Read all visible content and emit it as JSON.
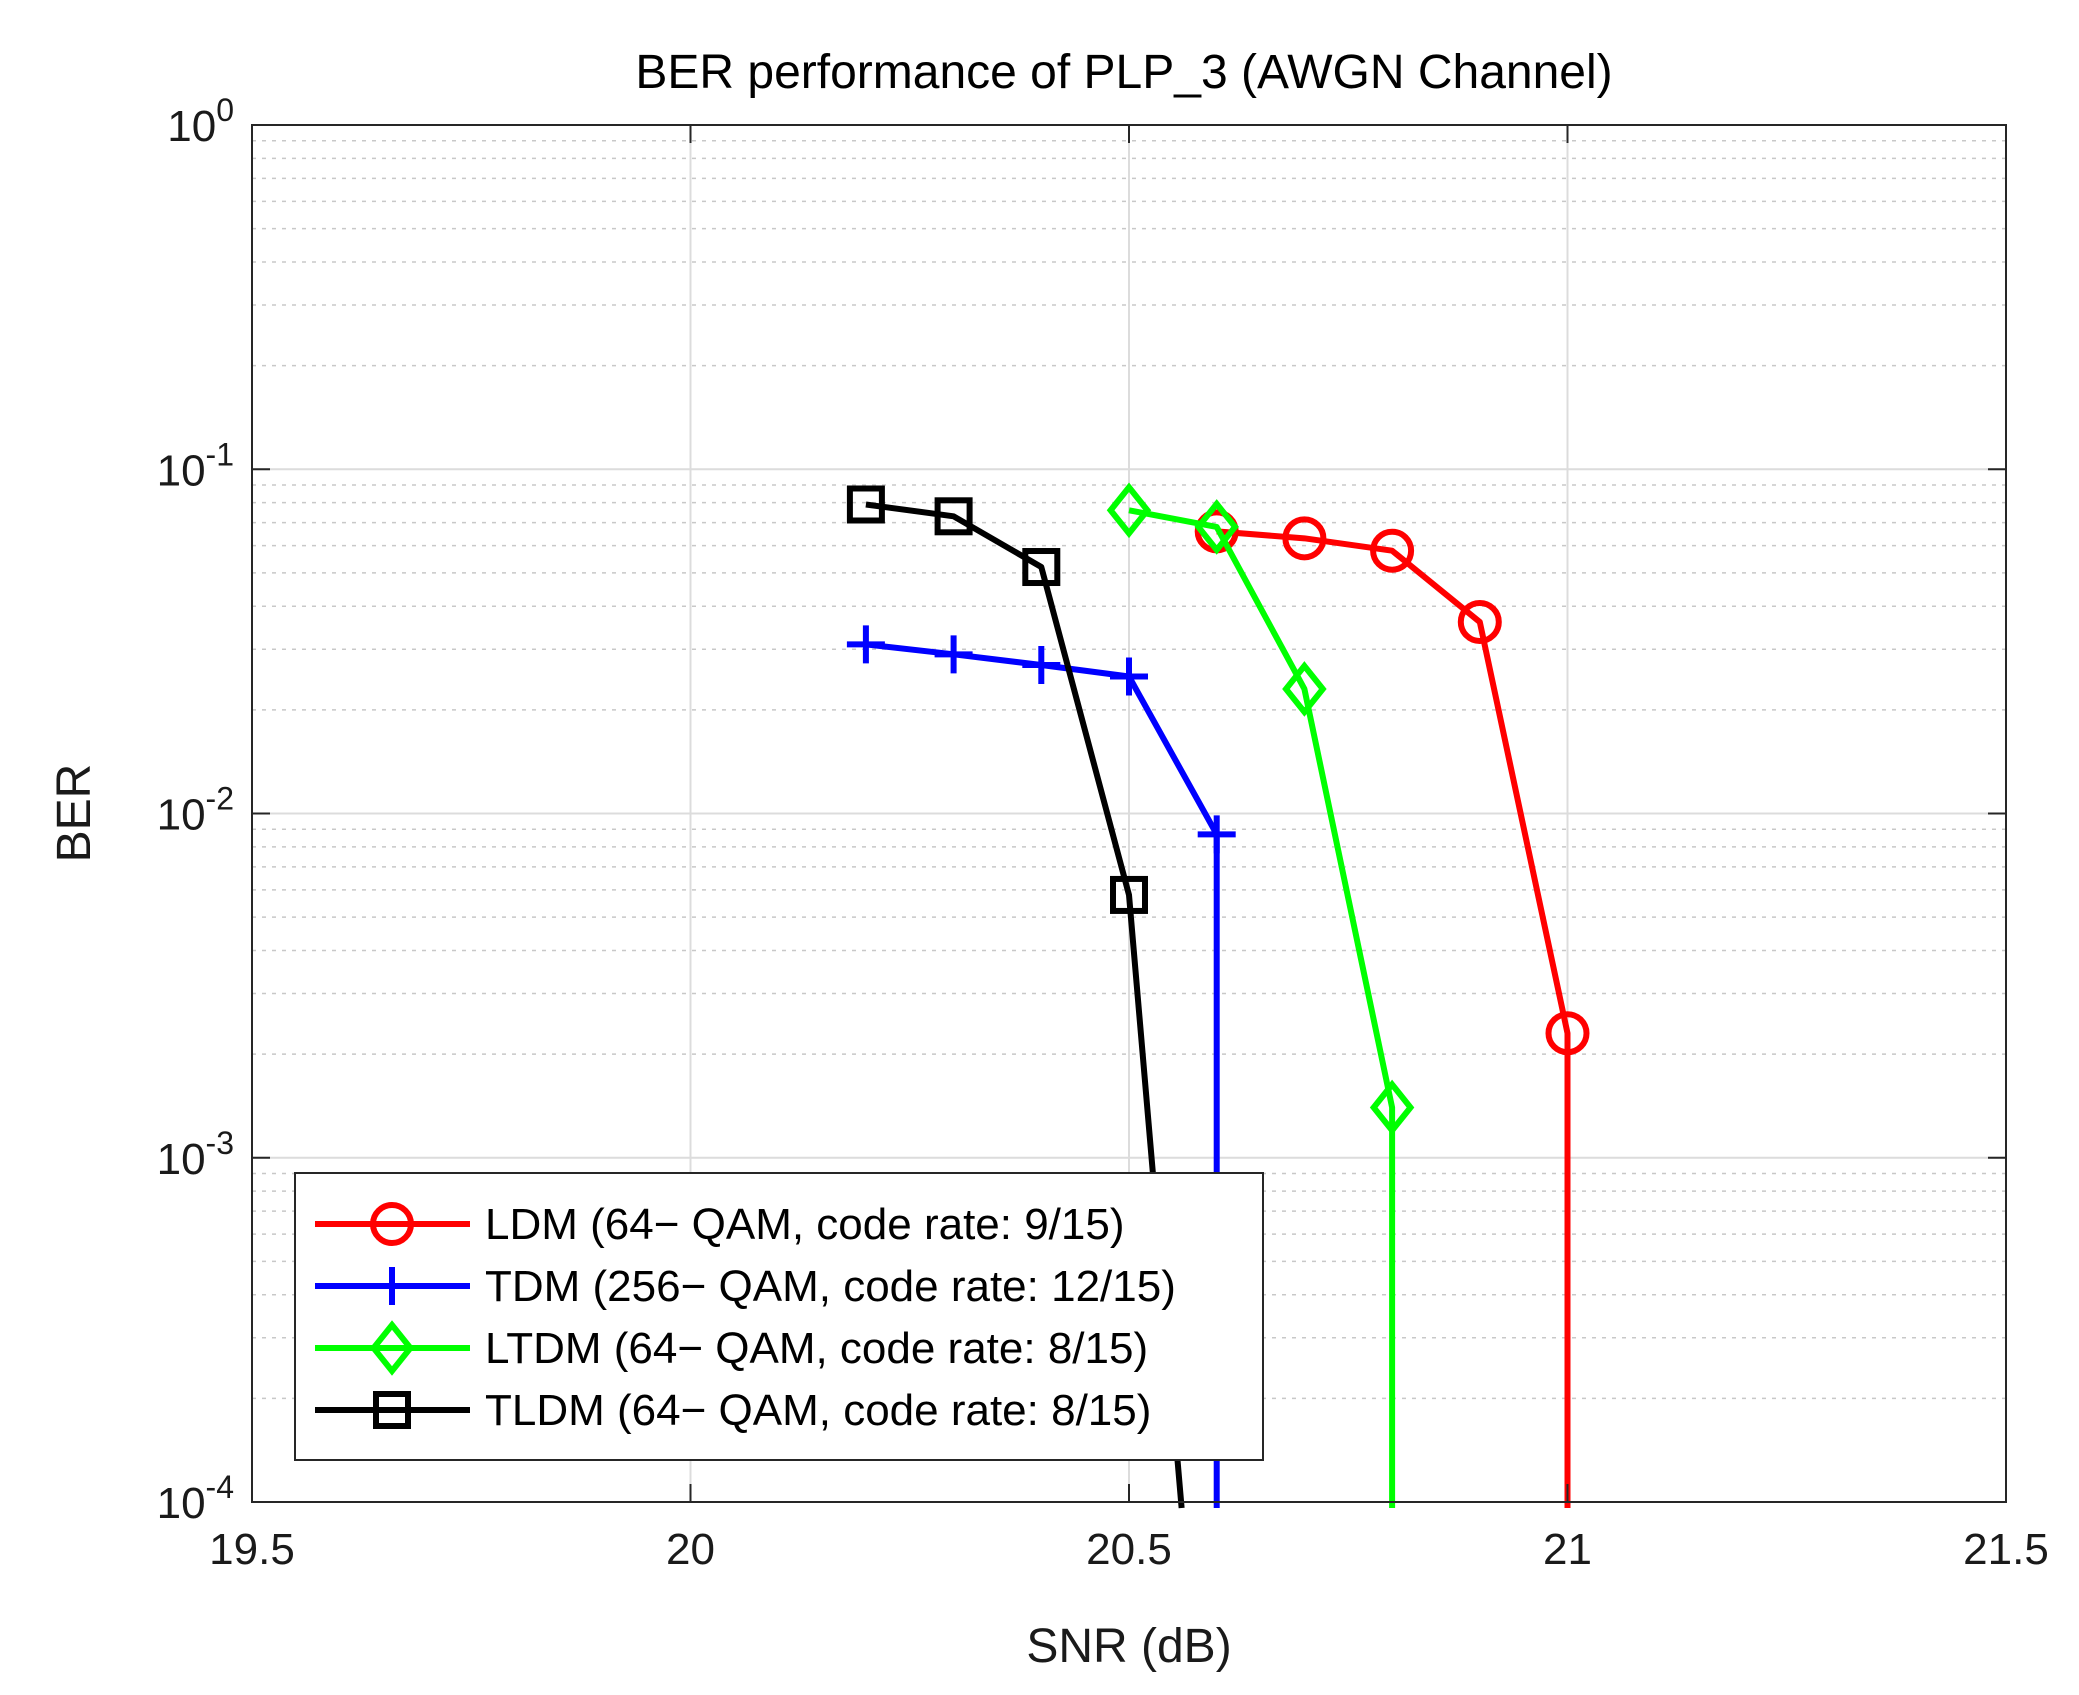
{
  "chart_data": {
    "type": "line",
    "title": "BER performance of PLP_3 (AWGN Channel)",
    "xlabel": "SNR (dB)",
    "ylabel": "BER",
    "xlim": [
      19.5,
      21.5
    ],
    "ylim": [
      0.0001,
      1
    ],
    "yscale": "log",
    "grid": true,
    "minor_grid": true,
    "legend_position": "bottom-left",
    "x_ticks": [
      19.5,
      20,
      20.5,
      21,
      21.5
    ],
    "x_tick_labels": [
      "19.5",
      "20",
      "20.5",
      "21",
      "21.5"
    ],
    "y_ticks": [
      {
        "value": 1,
        "base": "10",
        "exp": "0"
      },
      {
        "value": 0.1,
        "base": "10",
        "exp": "-1"
      },
      {
        "value": 0.01,
        "base": "10",
        "exp": "-2"
      },
      {
        "value": 0.001,
        "base": "10",
        "exp": "-3"
      },
      {
        "value": 0.0001,
        "base": "10",
        "exp": "-4"
      }
    ],
    "series": [
      {
        "name": "LDM (64− QAM, code rate: 9/15)",
        "color": "#ff0000",
        "marker": "circle",
        "x": [
          20.6,
          20.7,
          20.8,
          20.9,
          21.0
        ],
        "y": [
          0.066,
          0.063,
          0.058,
          0.036,
          0.0023
        ],
        "tail_to_floor": true
      },
      {
        "name": "TDM (256− QAM, code rate: 12/15)",
        "color": "#0000ff",
        "marker": "plus",
        "x": [
          20.2,
          20.3,
          20.4,
          20.5,
          20.6
        ],
        "y": [
          0.031,
          0.029,
          0.027,
          0.025,
          0.0087
        ],
        "tail_to_floor": true
      },
      {
        "name": "LTDM (64− QAM, code rate: 8/15)",
        "color": "#00ff00",
        "marker": "diamond",
        "x": [
          20.5,
          20.6,
          20.7,
          20.8
        ],
        "y": [
          0.076,
          0.068,
          0.023,
          0.0014
        ],
        "tail_to_floor": true
      },
      {
        "name": "TLDM (64− QAM, code rate: 8/15)",
        "color": "#000000",
        "marker": "square",
        "x": [
          20.2,
          20.3,
          20.4,
          20.5
        ],
        "y": [
          0.079,
          0.073,
          0.052,
          0.0058
        ],
        "tail_to_floor": true,
        "floor_x": 20.56
      }
    ]
  }
}
